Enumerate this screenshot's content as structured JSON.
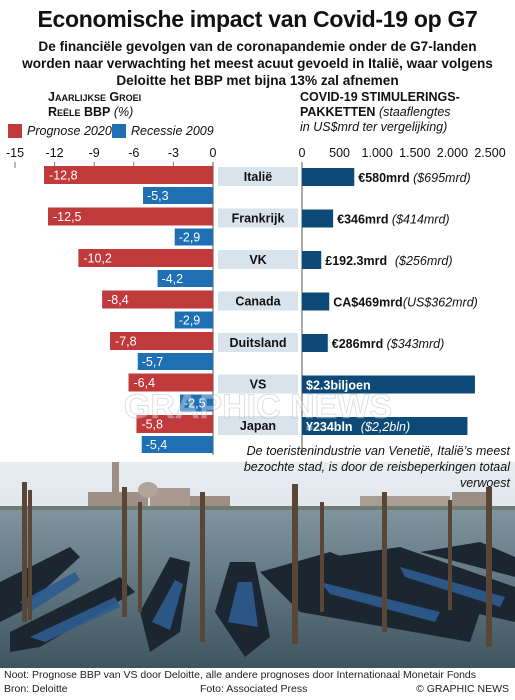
{
  "title": "Economische impact van Covid-19 op G7",
  "subtitle": "De financiële gevolgen van de coronapandemie onder de G7-landen worden naar verwachting het meest acuut gevoeld in Italië, waar volgens Deloitte het BBP met bijna 13% zal afnemen",
  "left_header": {
    "line1": "Jaarlijkse Groei",
    "line2": "Reële BBP",
    "unit": "(%)"
  },
  "right_header": {
    "line1": "COVID-19 STIMULERINGS-",
    "line2": "PAKKETTEN",
    "line3": "(staaflengtes",
    "line4": "in US$mrd ter vergelijking)"
  },
  "legend": {
    "forecast": "Prognose 2020",
    "recession": "Recessie 2009"
  },
  "colors": {
    "forecast": "#c0393b",
    "recession": "#1f6fb5",
    "stimulus": "#0d4a78",
    "country_bg": "#d9e3ec"
  },
  "chart_data": [
    {
      "type": "bar",
      "orientation": "horizontal",
      "categories": [
        "Italië",
        "Frankrijk",
        "VK",
        "Canada",
        "Duitsland",
        "VS",
        "Japan"
      ],
      "series": [
        {
          "name": "Prognose 2020",
          "values": [
            -12.8,
            -12.5,
            -10.2,
            -8.4,
            -7.8,
            -6.4,
            -5.8
          ],
          "labels": [
            "-12,8",
            "-12,5",
            "-10,2",
            "-8,4",
            "-7,8",
            "-6,4",
            "-5,8"
          ]
        },
        {
          "name": "Recessie 2009",
          "values": [
            -5.3,
            -2.9,
            -4.2,
            -2.9,
            -5.7,
            -2.5,
            -5.4
          ],
          "labels": [
            "-5,3",
            "-2,9",
            "-4,2",
            "-2,9",
            "-5,7",
            "-2,5",
            "-5,4"
          ]
        }
      ],
      "xlim": [
        -15,
        0
      ],
      "ticks": [
        -15,
        -12,
        -9,
        -6,
        -3,
        0
      ]
    },
    {
      "type": "bar",
      "orientation": "horizontal",
      "categories": [
        "Italië",
        "Frankrijk",
        "VK",
        "Canada",
        "Duitsland",
        "VS",
        "Japan"
      ],
      "values": [
        695,
        414,
        256,
        362,
        343,
        2300,
        2200
      ],
      "labels_main": [
        "€580mrd",
        "€346mrd",
        "£192.3mrd",
        "CA$469mrd",
        "€286mrd",
        "$2.3biljoen",
        "¥234bln"
      ],
      "labels_usd": [
        "($695mrd)",
        "($414mrd)",
        "($256mrd)",
        "(US$362mrd)",
        "($343mrd)",
        "",
        "($2,2bln)"
      ],
      "xlim": [
        0,
        2500
      ],
      "ticks": [
        "0",
        "500",
        "1.000",
        "1.500",
        "2.000",
        "2.500"
      ]
    }
  ],
  "caption": "De toeristenindustrie van Venetië, Italië’s meest bezochte stad, is door de reisbeperkingen totaal verwoest",
  "watermark": "GRAPHIC NEWS",
  "footer": {
    "note": "Noot: Prognose BBP van VS door Deloitte, alle andere prognoses door Internationaal Monetair Fonds",
    "source": "Bron: Deloitte",
    "photo": "Foto: Associated Press",
    "copyright": "© GRAPHIC NEWS"
  }
}
